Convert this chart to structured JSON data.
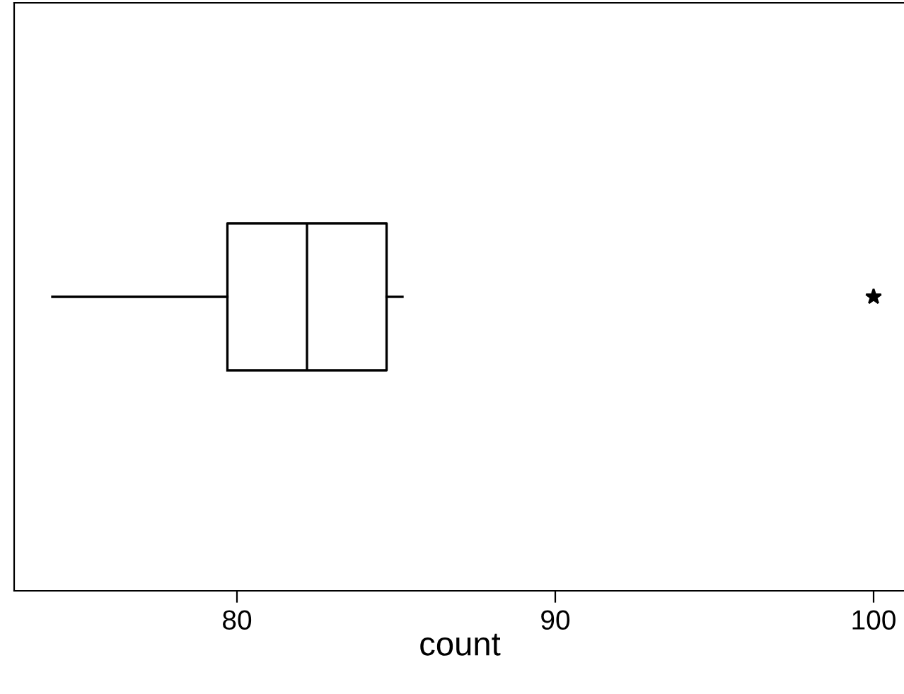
{
  "chart_data": {
    "type": "box",
    "orientation": "horizontal",
    "xlabel": "count",
    "categories": [
      null
    ],
    "boxes": [
      {
        "low": 74.2,
        "q1": 79.7,
        "median": 82.2,
        "q3": 84.7,
        "high": 85.2,
        "outliers": [
          100
        ]
      }
    ],
    "xlim": [
      73,
      101
    ],
    "xticks": [
      80,
      90,
      100
    ],
    "grid": false,
    "tick_labels": "x"
  }
}
